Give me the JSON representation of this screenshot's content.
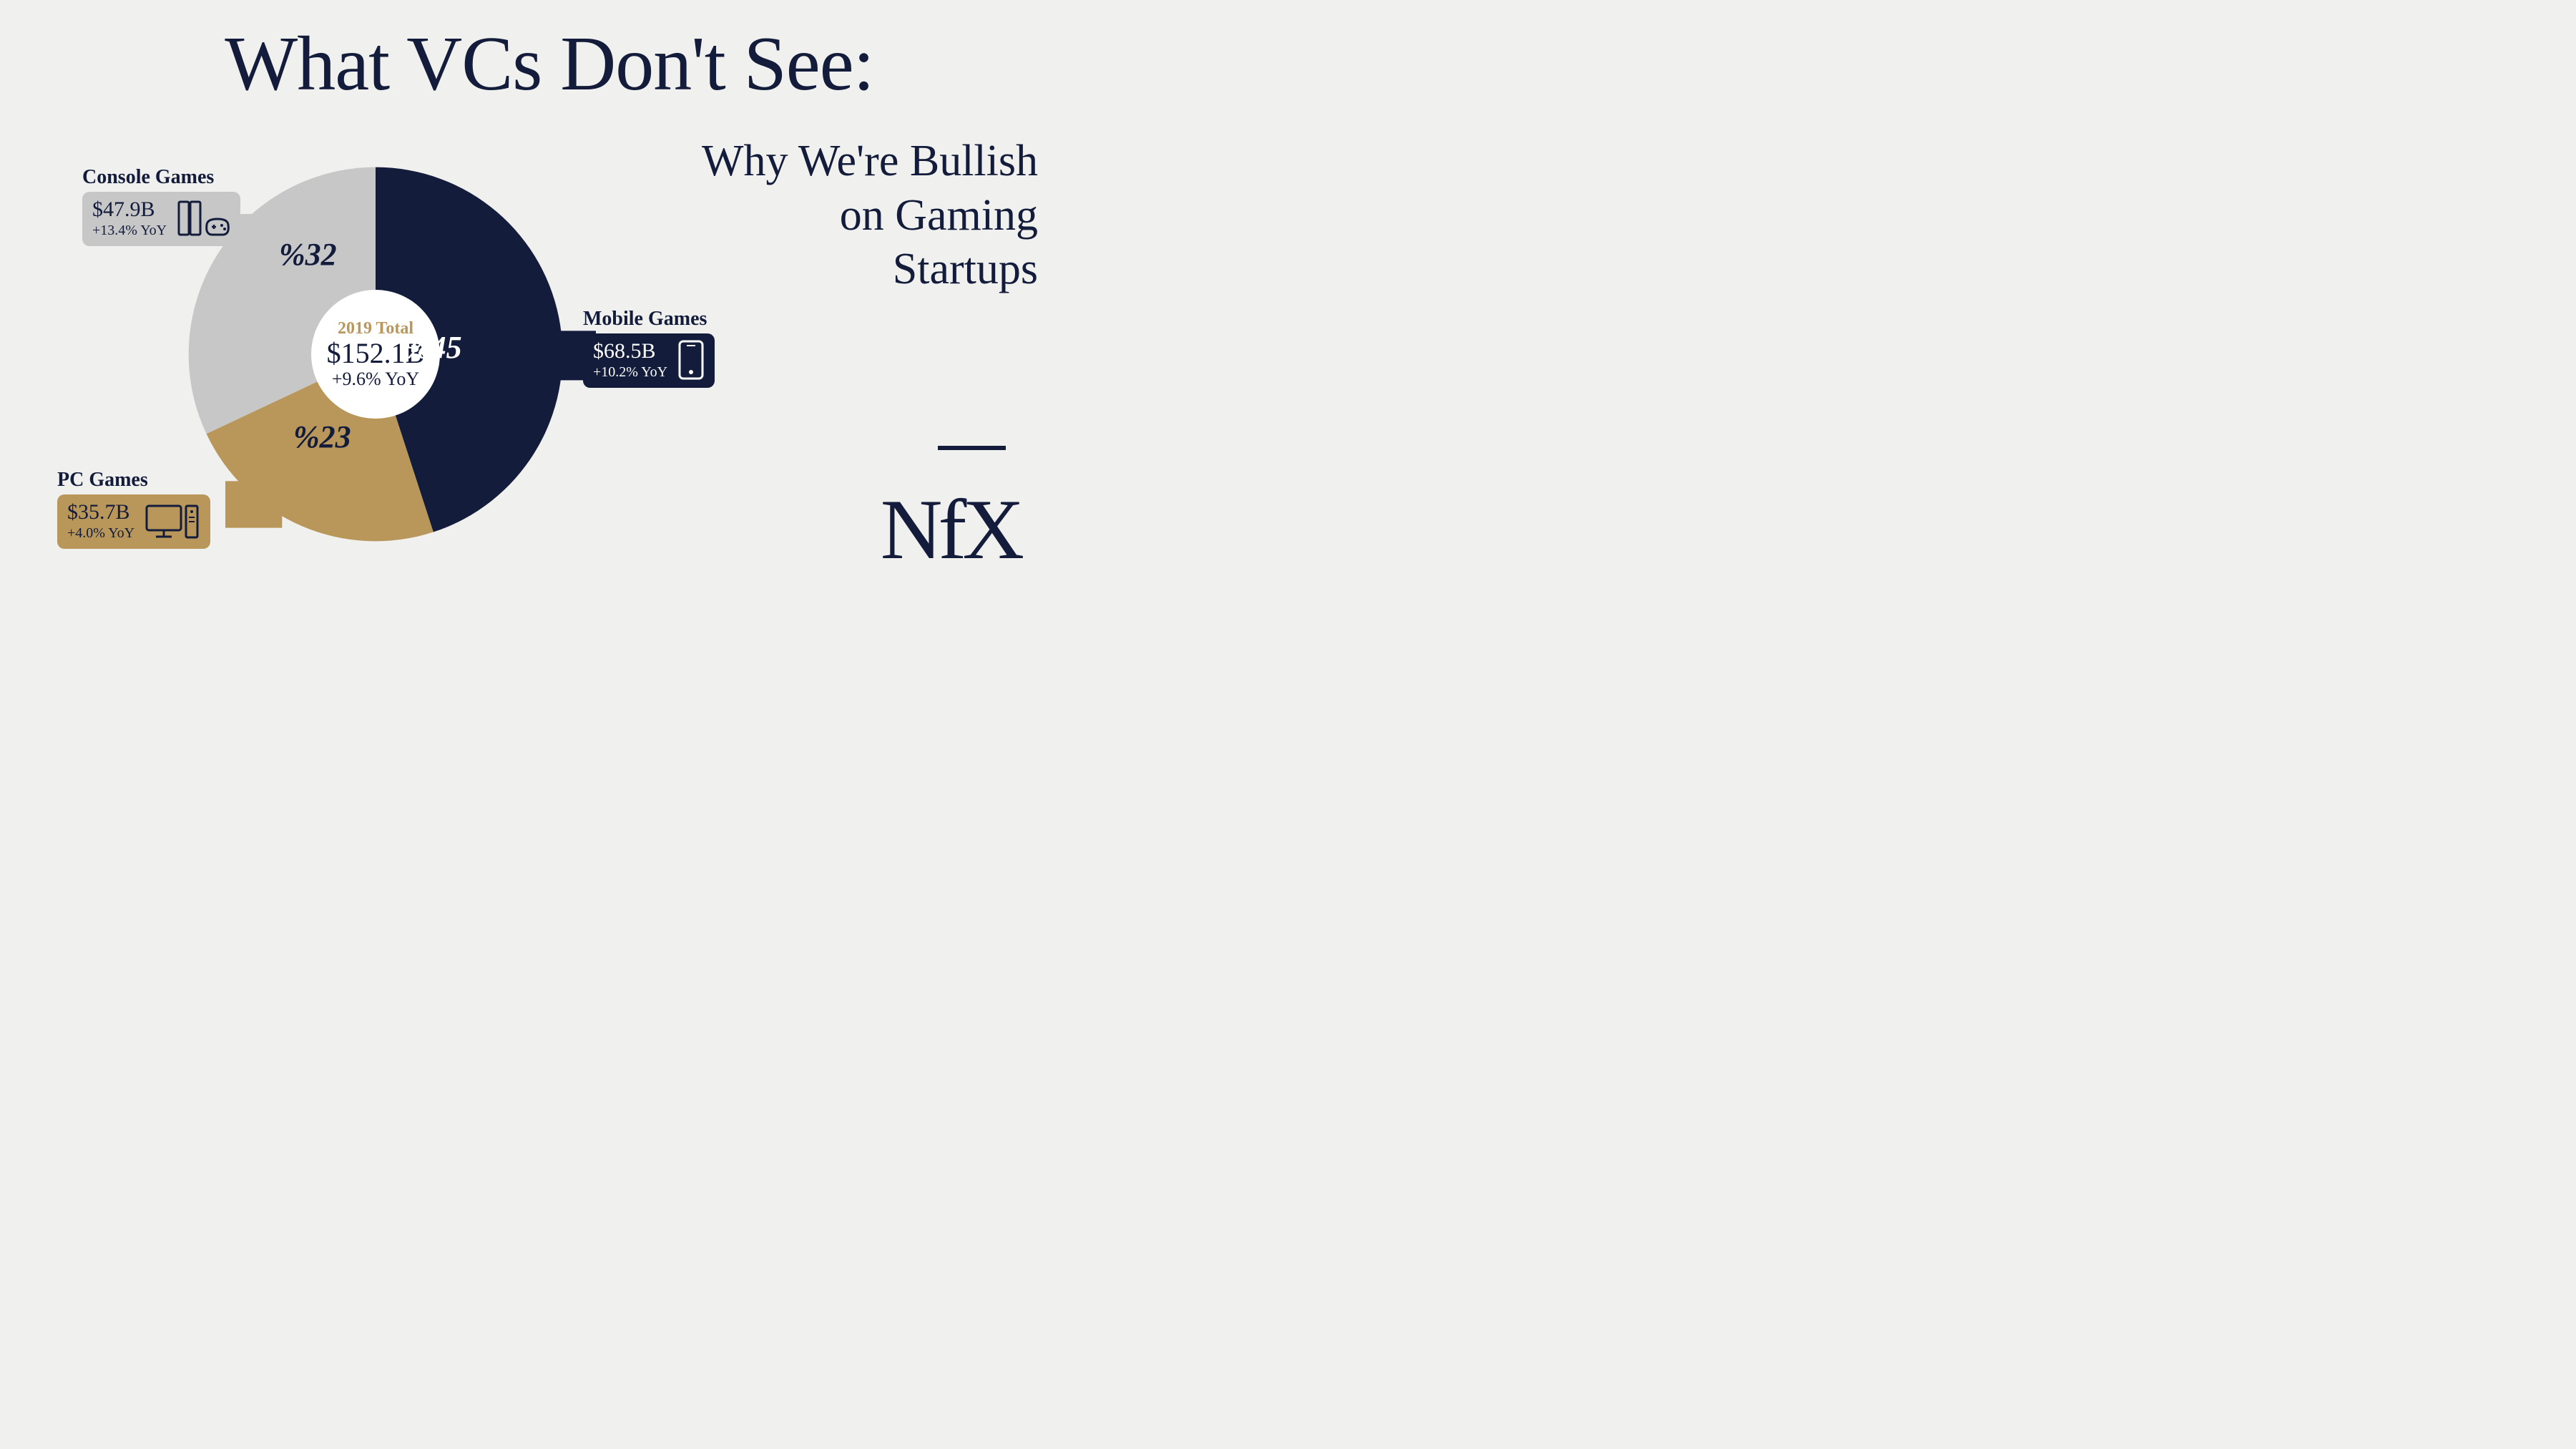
{
  "colors": {
    "background": "#f0f0ee",
    "navy": "#131c3a",
    "gold": "#b9975b",
    "lightgrey": "#c7c7c8",
    "white": "#ffffff"
  },
  "title": "What VCs Don't See:",
  "subtitle_line1": "Why We're Bullish",
  "subtitle_line2": "on Gaming",
  "subtitle_line3": "Startups",
  "logo": "NfX",
  "chart": {
    "type": "pie",
    "radius": 280,
    "inner_radius": 90,
    "center_year": "2019 Total",
    "center_total": "$152.1B",
    "center_yoy": "+9.6% YoY",
    "slices": [
      {
        "key": "mobile",
        "label": "Mobile Games",
        "amount": "$68.5B",
        "yoy": "+10.2% YoY",
        "pct_text": "%45",
        "percent": 45,
        "color": "#131c3a",
        "callout_text_color": "#ffffff",
        "callout_title_color": "#131c3a"
      },
      {
        "key": "pc",
        "label": "PC Games",
        "amount": "$35.7B",
        "yoy": "+4.0% YoY",
        "pct_text": "%23",
        "percent": 23,
        "color": "#b9975b",
        "callout_text_color": "#131c3a",
        "callout_title_color": "#131c3a"
      },
      {
        "key": "console",
        "label": "Console Games",
        "amount": "$47.9B",
        "yoy": "+13.4% YoY",
        "pct_text": "%32",
        "percent": 32,
        "color": "#c7c7c8",
        "callout_text_color": "#131c3a",
        "callout_title_color": "#131c3a"
      }
    ]
  }
}
